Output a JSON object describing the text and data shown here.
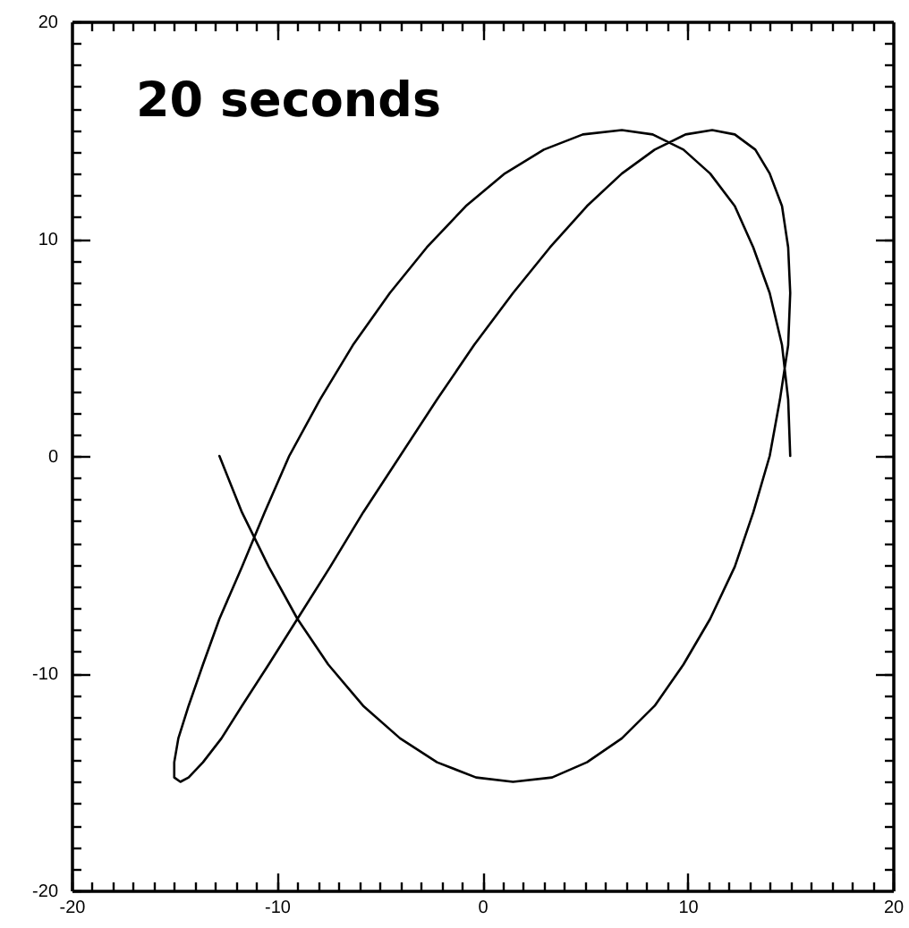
{
  "chart_data": {
    "type": "line",
    "title": "20 seconds",
    "color": "#000000",
    "x": [
      -12.8,
      -11.7,
      -10.4,
      -9.0,
      -7.5,
      -5.8,
      -4.0,
      -2.2,
      -0.3,
      1.5,
      3.4,
      5.1,
      6.8,
      8.4,
      9.8,
      11.1,
      12.3,
      13.2,
      14.0,
      14.5,
      14.9,
      15.0,
      14.9,
      14.6,
      14.0,
      13.3,
      12.3,
      11.2,
      9.9,
      8.4,
      6.8,
      5.1,
      3.3,
      1.5,
      -0.4,
      -2.2,
      -4.0,
      -5.8,
      -7.4,
      -9.0,
      -10.4,
      -11.7,
      -12.7,
      -13.6,
      -14.3,
      -14.7,
      -15.0,
      -15.0,
      -14.8,
      -14.3,
      -13.6,
      -12.8,
      -11.7,
      -10.6,
      -9.4,
      -7.9,
      -6.3,
      -4.5,
      -2.7,
      -0.8,
      1.1,
      3.0,
      4.9,
      6.8,
      8.3,
      9.8,
      11.1,
      12.3,
      13.2,
      14.0,
      14.6,
      14.9,
      15.0
    ],
    "values": [
      0,
      -2.6,
      -5.1,
      -7.5,
      -9.6,
      -11.5,
      -13.0,
      -14.1,
      -14.8,
      -15.0,
      -14.8,
      -14.1,
      -13.0,
      -11.5,
      -9.6,
      -7.5,
      -5.1,
      -2.6,
      0,
      2.6,
      5.1,
      7.5,
      9.6,
      11.5,
      13.0,
      14.1,
      14.8,
      15.0,
      14.8,
      14.1,
      13.0,
      11.5,
      9.6,
      7.5,
      5.1,
      2.6,
      0,
      -2.6,
      -5.1,
      -7.5,
      -9.6,
      -11.5,
      -13.0,
      -14.1,
      -14.8,
      -15.0,
      -14.8,
      -14.1,
      -13.0,
      -11.5,
      -9.6,
      -7.5,
      -5.1,
      -2.6,
      0,
      2.6,
      5.1,
      7.5,
      9.6,
      11.5,
      13.0,
      14.1,
      14.8,
      15.0,
      14.8,
      14.1,
      13.0,
      11.5,
      9.6,
      7.5,
      5.1,
      2.6,
      0
    ],
    "xlim": [
      -20,
      20
    ],
    "ylim": [
      -20,
      20
    ],
    "xticks": [
      -20,
      {
        "value": -19,
        "label": null
      },
      {
        "value": -18,
        "label": null
      },
      {
        "value": -17,
        "label": null
      },
      {
        "value": -16,
        "label": null
      },
      {
        "value": -15,
        "label": null
      },
      {
        "value": -14,
        "label": null
      },
      {
        "value": -13,
        "label": null
      },
      {
        "value": -12,
        "label": null
      },
      {
        "value": -11,
        "label": null
      },
      -10,
      {
        "value": -9,
        "label": null
      },
      {
        "value": -8,
        "label": null
      },
      {
        "value": -7,
        "label": null
      },
      {
        "value": -6,
        "label": null
      },
      {
        "value": -5,
        "label": null
      },
      {
        "value": -4,
        "label": null
      },
      {
        "value": -3,
        "label": null
      },
      {
        "value": -2,
        "label": null
      },
      {
        "value": -1,
        "label": null
      },
      0,
      {
        "value": 1,
        "label": null
      },
      {
        "value": 2,
        "label": null
      },
      {
        "value": 3,
        "label": null
      },
      {
        "value": 4,
        "label": null
      },
      {
        "value": 5,
        "label": null
      },
      {
        "value": 6,
        "label": null
      },
      {
        "value": 7,
        "label": null
      },
      {
        "value": 8,
        "label": null
      },
      {
        "value": 9,
        "label": null
      },
      10,
      {
        "value": 11,
        "label": null
      },
      {
        "value": 12,
        "label": null
      },
      {
        "value": 13,
        "label": null
      },
      {
        "value": 14,
        "label": null
      },
      {
        "value": 15,
        "label": null
      },
      {
        "value": 16,
        "label": null
      },
      {
        "value": 17,
        "label": null
      },
      {
        "value": 18,
        "label": null
      },
      {
        "value": 19,
        "label": null
      },
      20
    ],
    "yticks": [
      -20,
      {
        "value": -19,
        "label": null
      },
      {
        "value": -18,
        "label": null
      },
      {
        "value": -17,
        "label": null
      },
      {
        "value": -16,
        "label": null
      },
      {
        "value": -15,
        "label": null
      },
      {
        "value": -14,
        "label": null
      },
      {
        "value": -13,
        "label": null
      },
      {
        "value": -12,
        "label": null
      },
      {
        "value": -11,
        "label": null
      },
      -10,
      {
        "value": -9,
        "label": null
      },
      {
        "value": -8,
        "label": null
      },
      {
        "value": -7,
        "label": null
      },
      {
        "value": -6,
        "label": null
      },
      {
        "value": -5,
        "label": null
      },
      {
        "value": -4,
        "label": null
      },
      {
        "value": -3,
        "label": null
      },
      {
        "value": -2,
        "label": null
      },
      {
        "value": -1,
        "label": null
      },
      0,
      {
        "value": 1,
        "label": null
      },
      {
        "value": 2,
        "label": null
      },
      {
        "value": 3,
        "label": null
      },
      {
        "value": 4,
        "label": null
      },
      {
        "value": 5,
        "label": null
      },
      {
        "value": 6,
        "label": null
      },
      {
        "value": 7,
        "label": null
      },
      {
        "value": 8,
        "label": null
      },
      {
        "value": 9,
        "label": null
      },
      10,
      {
        "value": 11,
        "label": null
      },
      {
        "value": 12,
        "label": null
      },
      {
        "value": 13,
        "label": null
      },
      {
        "value": 14,
        "label": null
      },
      {
        "value": 15,
        "label": null
      },
      {
        "value": 16,
        "label": null
      },
      {
        "value": 17,
        "label": null
      },
      {
        "value": 18,
        "label": null
      },
      {
        "value": 19,
        "label": null
      },
      20
    ]
  }
}
